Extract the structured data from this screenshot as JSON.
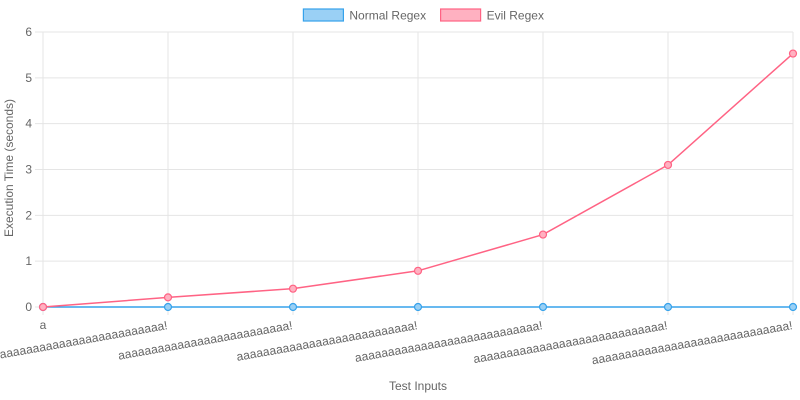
{
  "chart_data": {
    "type": "line",
    "x": [
      "a",
      "aaaaaaaaaaaaaaaaaaaaaaaaa!",
      "aaaaaaaaaaaaaaaaaaaaaaaaaa!",
      "aaaaaaaaaaaaaaaaaaaaaaaaaaa!",
      "aaaaaaaaaaaaaaaaaaaaaaaaaaaa!",
      "aaaaaaaaaaaaaaaaaaaaaaaaaaaaa!",
      "aaaaaaaaaaaaaaaaaaaaaaaaaaaaaa!"
    ],
    "series": [
      {
        "name": "Normal Regex",
        "values": [
          0,
          0,
          0,
          0,
          0,
          0,
          0
        ],
        "color": "#36a2eb",
        "fill": "#9ad0f5"
      },
      {
        "name": "Evil Regex",
        "values": [
          0,
          0.21,
          0.4,
          0.79,
          1.58,
          3.1,
          5.53
        ],
        "color": "#ff6384",
        "fill": "#ffb1c1"
      }
    ],
    "xlabel": "Test Inputs",
    "ylabel": "Execution Time (seconds)",
    "ylim": [
      0,
      6
    ],
    "yticks": [
      "0",
      "1",
      "2",
      "3",
      "4",
      "5",
      "6"
    ],
    "grid": true,
    "legend_position": "top"
  }
}
